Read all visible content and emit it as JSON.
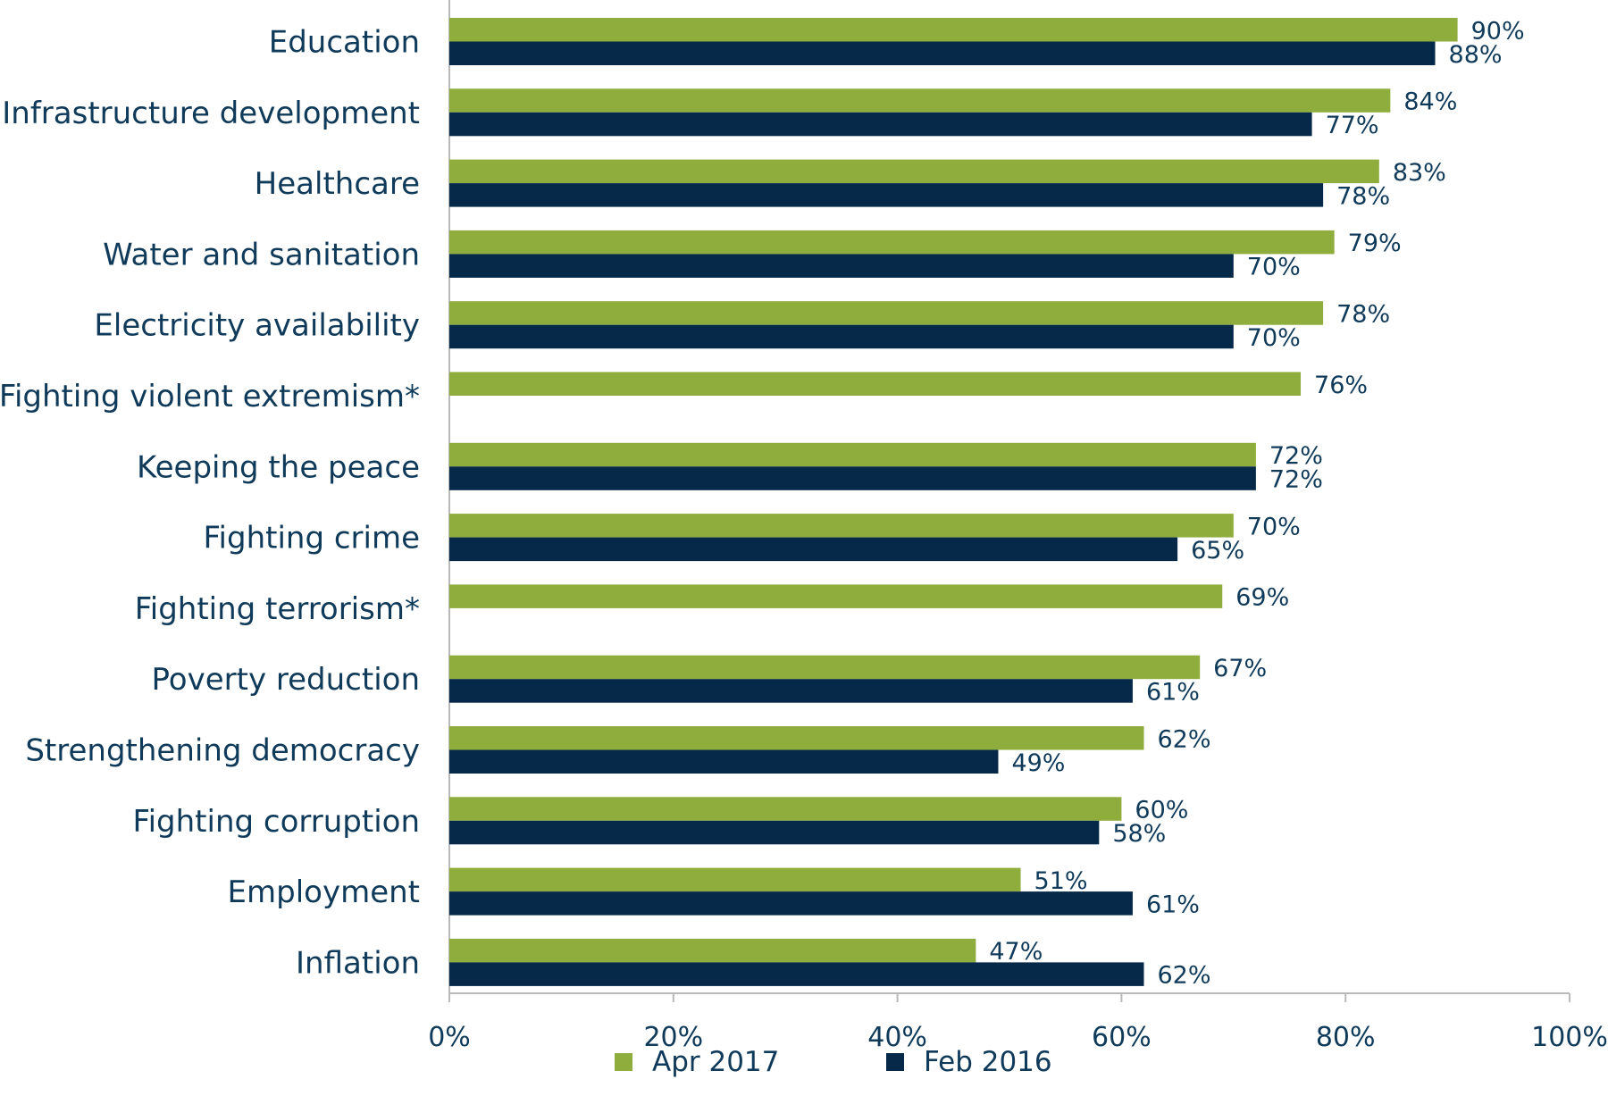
{
  "chart_data": {
    "type": "bar",
    "orientation": "horizontal",
    "categories": [
      "Education",
      "Infrastructure development",
      "Healthcare",
      "Water and sanitation",
      "Electricity availability",
      "Fighting violent extremism*",
      "Keeping the peace",
      "Fighting crime",
      "Fighting terrorism*",
      "Poverty reduction",
      "Strengthening democracy",
      "Fighting corruption",
      "Employment",
      "Inflation"
    ],
    "series": [
      {
        "name": "Apr 2017",
        "color": "#8fad3c",
        "values": [
          90,
          84,
          83,
          79,
          78,
          76,
          72,
          70,
          69,
          67,
          62,
          60,
          51,
          47
        ],
        "labels": [
          "90%",
          "84%",
          "83%",
          "79%",
          "78%",
          "76%",
          "72%",
          "70%",
          "69%",
          "67%",
          "62%",
          "60%",
          "51%",
          "47%"
        ]
      },
      {
        "name": "Feb 2016",
        "color": "#06294a",
        "values": [
          88,
          77,
          78,
          70,
          70,
          null,
          72,
          65,
          null,
          61,
          49,
          58,
          61,
          62
        ],
        "labels": [
          "88%",
          "77%",
          "78%",
          "70%",
          "70%",
          null,
          "72%",
          "65%",
          null,
          "61%",
          "49%",
          "58%",
          "61%",
          "62%"
        ]
      }
    ],
    "xlim": [
      0,
      100
    ],
    "xticks": [
      0,
      20,
      40,
      60,
      80,
      100
    ],
    "xtick_labels": [
      "0%",
      "20%",
      "40%",
      "60%",
      "80%",
      "100%"
    ],
    "xlabel": "",
    "ylabel": "",
    "title": "",
    "grid": false,
    "legend_position": "bottom",
    "text_color": "#0f3a5a",
    "axis_color": "#b9b9b9"
  }
}
